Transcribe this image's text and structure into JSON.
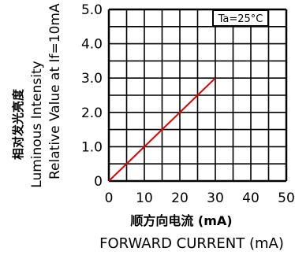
{
  "chart_data": {
    "type": "line",
    "title": "",
    "xlabel_cn": "顺方向电流 (mA)",
    "xlabel": "FORWARD CURRENT (mA)",
    "ylabel_cn": "相对发光亮度",
    "ylabel_line1": "Luminous Intensity",
    "ylabel_line2": "Relative Value at If=10mA",
    "annotation": "Ta=25°C",
    "xlim": [
      0,
      50
    ],
    "ylim": [
      0,
      5
    ],
    "x_ticks": [
      0,
      10,
      20,
      30,
      40,
      50
    ],
    "y_ticks": [
      0,
      1.0,
      2.0,
      3.0,
      4.0,
      5.0
    ],
    "x_tick_labels": [
      "0",
      "10",
      "20",
      "30",
      "40",
      "50"
    ],
    "y_tick_labels": [
      "0",
      "1.0",
      "2.0",
      "3.0",
      "4.0",
      "5.0"
    ],
    "grid": true,
    "series": [
      {
        "color": "#e00000",
        "x": [
          0,
          30
        ],
        "y": [
          0,
          3.0
        ]
      }
    ]
  }
}
